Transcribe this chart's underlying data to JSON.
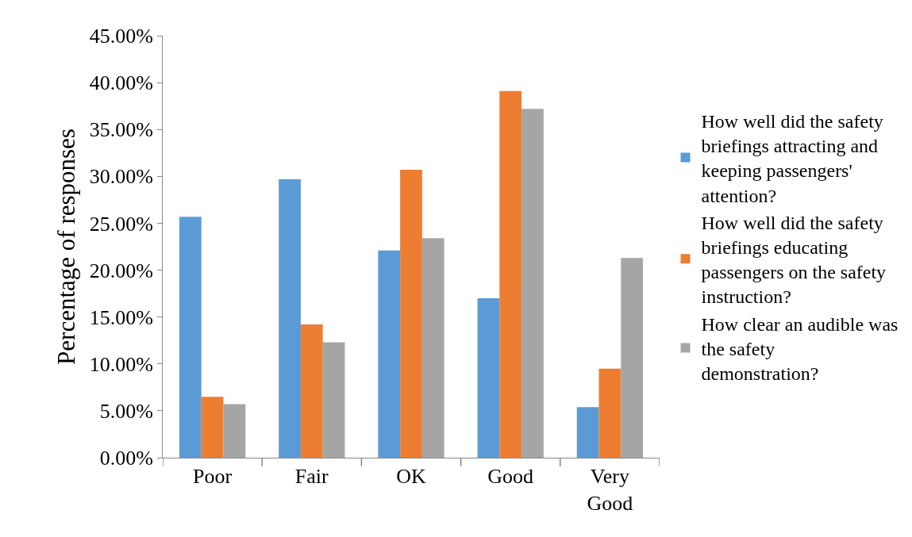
{
  "chart_data": {
    "type": "bar",
    "ylabel": "Percentage of responses",
    "categories": [
      "Poor",
      "Fair",
      "OK",
      "Good",
      "Very Good"
    ],
    "series": [
      {
        "name": "How well did the safety briefings attracting and keeping passengers' attention?",
        "color": "#5b9bd5",
        "values": [
          25.7,
          29.7,
          22.1,
          17.0,
          5.4
        ]
      },
      {
        "name": "How well did the safety briefings educating passengers on the safety instruction?",
        "color": "#ed7d31",
        "values": [
          6.5,
          14.2,
          30.7,
          39.1,
          9.5
        ]
      },
      {
        "name": "How clear an audible was the safety demonstration?",
        "color": "#a5a5a5",
        "values": [
          5.7,
          12.3,
          23.4,
          37.2,
          21.3
        ]
      }
    ],
    "ylim": [
      0,
      45
    ],
    "yticks": [
      {
        "value": 0,
        "label": "0.00%"
      },
      {
        "value": 5,
        "label": "5.00%"
      },
      {
        "value": 10,
        "label": "10.00%"
      },
      {
        "value": 15,
        "label": "15.00%"
      },
      {
        "value": 20,
        "label": "20.00%"
      },
      {
        "value": 25,
        "label": "25.00%"
      },
      {
        "value": 30,
        "label": "30.00%"
      },
      {
        "value": 35,
        "label": "35.00%"
      },
      {
        "value": 40,
        "label": "40.00%"
      },
      {
        "value": 45,
        "label": "45.00%"
      }
    ],
    "legend": "right"
  }
}
